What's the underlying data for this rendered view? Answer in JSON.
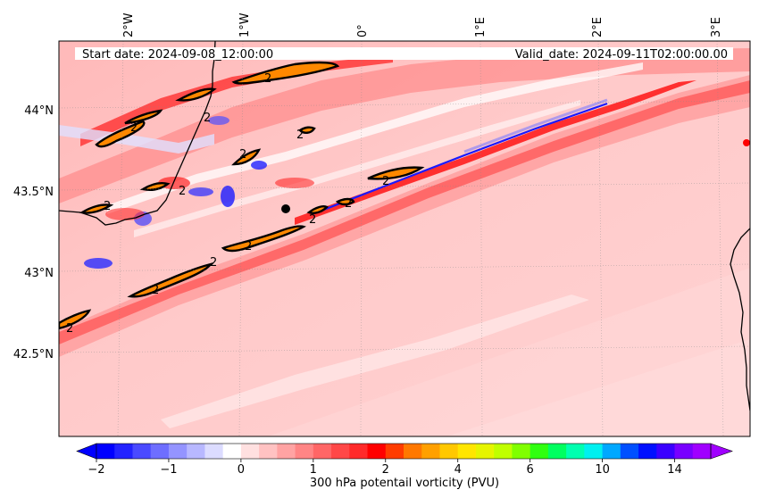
{
  "header": {
    "start_label": "Start date: 2024-09-08_12:00:00",
    "valid_label": "Valid_date: 2024-09-11T02:00:00.00"
  },
  "longitude_ticks": [
    "2°W",
    "1°W",
    "0°",
    "1°E",
    "2°E",
    "3°E"
  ],
  "latitude_ticks": [
    "44°N",
    "43.5°N",
    "43°N",
    "42.5°N"
  ],
  "colorbar": {
    "label": "300 hPa potentail vorticity (PVU)",
    "tick_labels": [
      "−2",
      "−1",
      "0",
      "1",
      "2",
      "4",
      "6",
      "10",
      "14"
    ],
    "colors": [
      "#0000ff",
      "#2323ff",
      "#4a4aff",
      "#6e6eff",
      "#9494ff",
      "#b8b8ff",
      "#dcdcff",
      "#ffffff",
      "#ffe0e0",
      "#ffc2c2",
      "#ffa3a3",
      "#ff8585",
      "#ff6666",
      "#ff4848",
      "#ff2a2a",
      "#ff0000",
      "#ff3c00",
      "#ff7800",
      "#ffa000",
      "#ffc800",
      "#ffe600",
      "#e6f500",
      "#c0ff00",
      "#80ff00",
      "#30ff10",
      "#00ff60",
      "#00ffb0",
      "#00f0f0",
      "#00a8ff",
      "#0050ff",
      "#0010ff",
      "#3a00ff",
      "#7800ff",
      "#a000ff"
    ],
    "extend_min_color": "#0000ff",
    "extend_max_color": "#a000ff"
  },
  "map": {
    "contour_label": "2",
    "marker_icon": "location-dot-icon"
  }
}
